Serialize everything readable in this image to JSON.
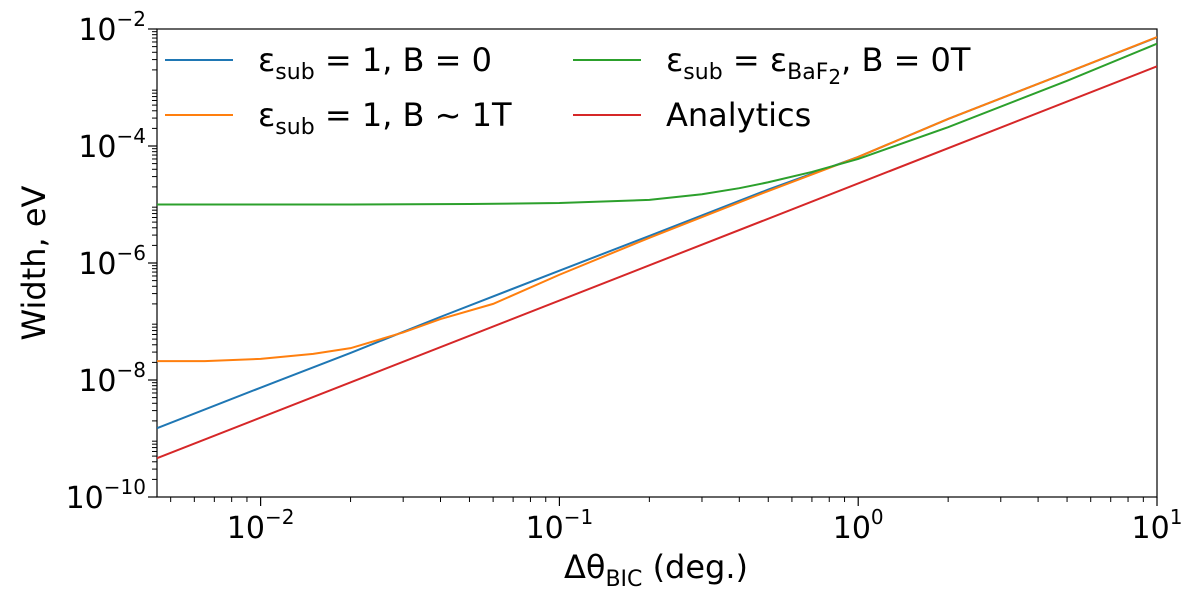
{
  "chart_data": {
    "type": "line",
    "xlabel": {
      "main": "Δθ",
      "sub": "BIC",
      "rest": " (deg.)"
    },
    "ylabel": "Width, eV",
    "x_scale": "log",
    "y_scale": "log",
    "xlim": [
      0.0045,
      10
    ],
    "ylim": [
      1e-10,
      0.01
    ],
    "x_ticks": [
      {
        "value": 0.01,
        "base": "10",
        "exp": "−2"
      },
      {
        "value": 0.1,
        "base": "10",
        "exp": "−1"
      },
      {
        "value": 1,
        "base": "10",
        "exp": "0"
      },
      {
        "value": 10,
        "base": "10",
        "exp": "1"
      }
    ],
    "y_ticks": [
      {
        "value": 1e-10,
        "base": "10",
        "exp": "−10"
      },
      {
        "value": 1e-08,
        "base": "10",
        "exp": "−8"
      },
      {
        "value": 1e-06,
        "base": "10",
        "exp": "−6"
      },
      {
        "value": 0.0001,
        "base": "10",
        "exp": "−4"
      },
      {
        "value": 0.01,
        "base": "10",
        "exp": "−2"
      }
    ],
    "grid": false,
    "legend_position": "top-left",
    "series": [
      {
        "name": "ε_sub = 1, B = 0",
        "color": "#1f77b4",
        "legend": {
          "sym": "ε",
          "sub": "sub",
          "rest": " = 1, B = 0"
        },
        "x": [
          0.0045,
          0.01,
          0.02,
          0.04,
          0.1,
          0.2,
          0.5,
          1,
          2,
          5,
          10
        ],
        "y": [
          1.5e-09,
          7.4e-09,
          2.9e-08,
          1.2e-07,
          7.4e-07,
          2.9e-06,
          1.8e-05,
          6.5e-05,
          0.00029,
          0.0018,
          0.0072
        ]
      },
      {
        "name": "ε_sub = 1, B ~ 1T",
        "color": "#ff7f0e",
        "legend": {
          "sym": "ε",
          "sub": "sub",
          "rest": " = 1, B ~ 1T"
        },
        "x": [
          0.0045,
          0.0065,
          0.01,
          0.015,
          0.02,
          0.03,
          0.04,
          0.06,
          0.1,
          0.2,
          0.5,
          1,
          2,
          5,
          10
        ],
        "y": [
          2.1e-08,
          2.1e-08,
          2.3e-08,
          2.8e-08,
          3.5e-08,
          6.5e-08,
          1.1e-07,
          2e-07,
          6.3e-07,
          2.7e-06,
          1.7e-05,
          6.5e-05,
          0.00029,
          0.0018,
          0.0073
        ]
      },
      {
        "name": "ε_sub = ε_BaF2, B = 0T",
        "color": "#2ca02c",
        "legend": {
          "sym": "ε",
          "sub": "sub",
          "rest": " = ε",
          "sub2": "BaF",
          "sub2b": "2",
          "rest2": ", B = 0T"
        },
        "x": [
          0.0045,
          0.01,
          0.02,
          0.05,
          0.1,
          0.2,
          0.3,
          0.4,
          0.5,
          0.7,
          1,
          2,
          5,
          10
        ],
        "y": [
          1e-05,
          1e-05,
          1e-05,
          1.02e-05,
          1.06e-05,
          1.2e-05,
          1.5e-05,
          1.9e-05,
          2.4e-05,
          3.6e-05,
          6e-05,
          0.00021,
          0.0013,
          0.0056
        ]
      },
      {
        "name": "Analytics",
        "color": "#d62728",
        "legend": {
          "plain": "Analytics"
        },
        "x": [
          0.0045,
          10
        ],
        "y": [
          4.6e-10,
          0.0023
        ]
      }
    ]
  }
}
